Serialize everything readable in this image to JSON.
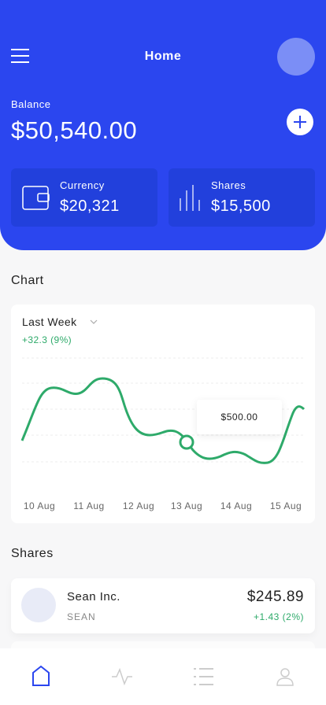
{
  "header": {
    "title": "Home",
    "balance_label": "Balance",
    "balance": "$50,540.00"
  },
  "cards": [
    {
      "label": "Currency",
      "value": "$20,321"
    },
    {
      "label": "Shares",
      "value": "$15,500"
    }
  ],
  "chart_section": {
    "title": "Chart",
    "period": "Last Week",
    "change": "+32.3 (9%)",
    "tooltip": "$500.00",
    "x_labels": [
      "10 Aug",
      "11 Aug",
      "12 Aug",
      "13 Aug",
      "14 Aug",
      "15 Aug"
    ]
  },
  "shares_section": {
    "title": "Shares",
    "items": [
      {
        "name": "Sean Inc.",
        "ticker": "SEAN",
        "price": "$245.89",
        "change": "+1.43 (2%)"
      }
    ]
  }
}
